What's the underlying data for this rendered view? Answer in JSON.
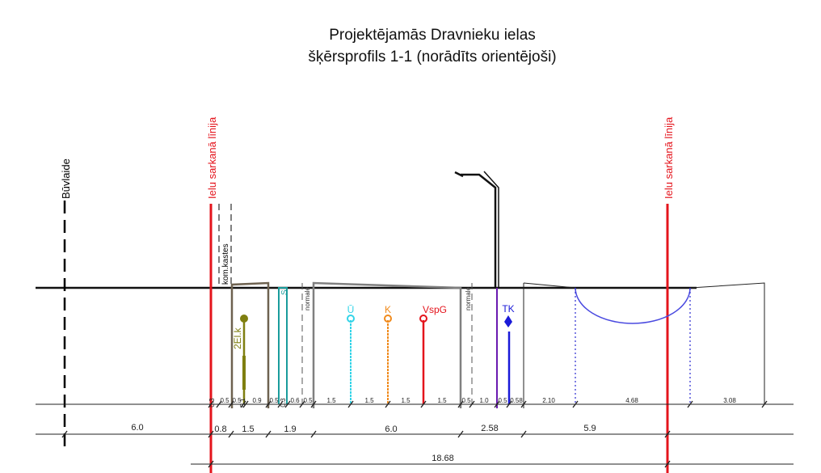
{
  "title": {
    "line1": "Projektējamās Dravnieku ielas",
    "line2": "šķērsprofils 1-1 (norādīts orientējoši)"
  },
  "labels": {
    "buvlaide": "Būvlaide",
    "sarkana_left": "Ielu sarkanā līnija",
    "sarkana_right": "Ielu sarkanā līnija",
    "kom_kastes": "kom.kastes",
    "normale_1": "normale",
    "normale_2": "normale",
    "elk": "2El.k",
    "s": "S"
  },
  "utilities": [
    {
      "label": "Ū",
      "color": "#33d4e8"
    },
    {
      "label": "K",
      "color": "#f08a1c"
    },
    {
      "label": "VspG",
      "color": "#e4141c"
    },
    {
      "label": "TK",
      "color": "#1a1ad8"
    }
  ],
  "dims_row1": [
    {
      "label": "0.3"
    },
    {
      "label": "0.5"
    },
    {
      "label": "0.5"
    },
    {
      "label": "0.1"
    },
    {
      "label": "0.9"
    },
    {
      "label": "0.5"
    },
    {
      "label": "0.3"
    },
    {
      "label": "0.6"
    },
    {
      "label": "0.5"
    },
    {
      "label": "1.5"
    },
    {
      "label": "1.5"
    },
    {
      "label": "1.5"
    },
    {
      "label": "1.5"
    },
    {
      "label": "0.5"
    },
    {
      "label": "1.0"
    },
    {
      "label": "0.5"
    },
    {
      "label": "0.58"
    },
    {
      "label": "2.10"
    },
    {
      "label": "4.68"
    },
    {
      "label": "3.08"
    }
  ],
  "dims_row2": [
    {
      "label": "6.0"
    },
    {
      "label": "0.8"
    },
    {
      "label": "1.5"
    },
    {
      "label": "1.9"
    },
    {
      "label": "6.0"
    },
    {
      "label": "2.58"
    },
    {
      "label": "5.9"
    }
  ],
  "dims_row3": [
    {
      "label": "18.68"
    }
  ],
  "colors": {
    "red": "#e4141c",
    "olive": "#7f7f10",
    "brown": "#6e6250",
    "teal": "#1a9c9c",
    "purple": "#6a1ab0",
    "arc": "#4a4ae0",
    "dark": "#222222"
  }
}
